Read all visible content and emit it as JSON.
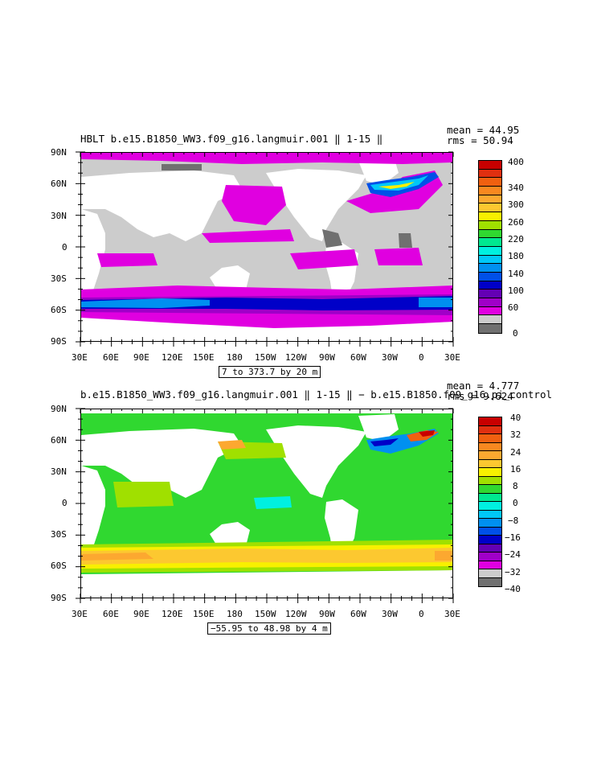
{
  "panel_top": {
    "title": "HBLT b.e15.B1850_WW3.f09_g16.langmuir.001 ‖ 1-15 ‖",
    "mean": "mean = 44.95",
    "rms": "rms = 50.94",
    "range": "7 to 373.7 by 20 m",
    "lat_labels": [
      "90N",
      "60N",
      "30N",
      "0",
      "30S",
      "60S",
      "90S"
    ],
    "lon_labels": [
      "30E",
      "60E",
      "90E",
      "120E",
      "150E",
      "180",
      "150W",
      "120W",
      "90W",
      "60W",
      "30W",
      "0",
      "30E"
    ],
    "colorbar_labels": [
      "400",
      "340",
      "300",
      "260",
      "220",
      "180",
      "140",
      "100",
      "60",
      "0"
    ],
    "colorbar_colors": [
      "#c80000",
      "#e03010",
      "#f06010",
      "#f88820",
      "#fca830",
      "#fcc830",
      "#f8f000",
      "#a0e000",
      "#30d830",
      "#00e890",
      "#00f0e0",
      "#00c8f8",
      "#0090f0",
      "#0050e8",
      "#0000c8",
      "#6400b4",
      "#a000c8",
      "#e000e0",
      "#cccccc",
      "#707070"
    ]
  },
  "panel_bottom": {
    "title": "b.e15.B1850_WW3.f09_g16.langmuir.001 ‖ 1-15 ‖ − b.e15.B1850.f09_g16.pi_control",
    "mean": "mean = 4.777",
    "rms": "rms = 9.624",
    "range": "−55.95 to 48.98 by 4 m",
    "lat_labels": [
      "90N",
      "60N",
      "30N",
      "0",
      "30S",
      "60S",
      "90S"
    ],
    "lon_labels": [
      "30E",
      "60E",
      "90E",
      "120E",
      "150E",
      "180",
      "150W",
      "120W",
      "90W",
      "60W",
      "30W",
      "0",
      "30E"
    ],
    "colorbar_labels": [
      "40",
      "32",
      "24",
      "16",
      "8",
      "0",
      "−8",
      "−16",
      "−24",
      "−32",
      "−40"
    ],
    "colorbar_colors": [
      "#c80000",
      "#e03010",
      "#f06010",
      "#f88820",
      "#fca830",
      "#fcc830",
      "#f8f000",
      "#a0e000",
      "#30d830",
      "#00e890",
      "#00f0e0",
      "#00c8f8",
      "#0090f0",
      "#0050e8",
      "#0000c8",
      "#6400b4",
      "#a000c8",
      "#e000e0",
      "#cccccc",
      "#707070"
    ]
  }
}
